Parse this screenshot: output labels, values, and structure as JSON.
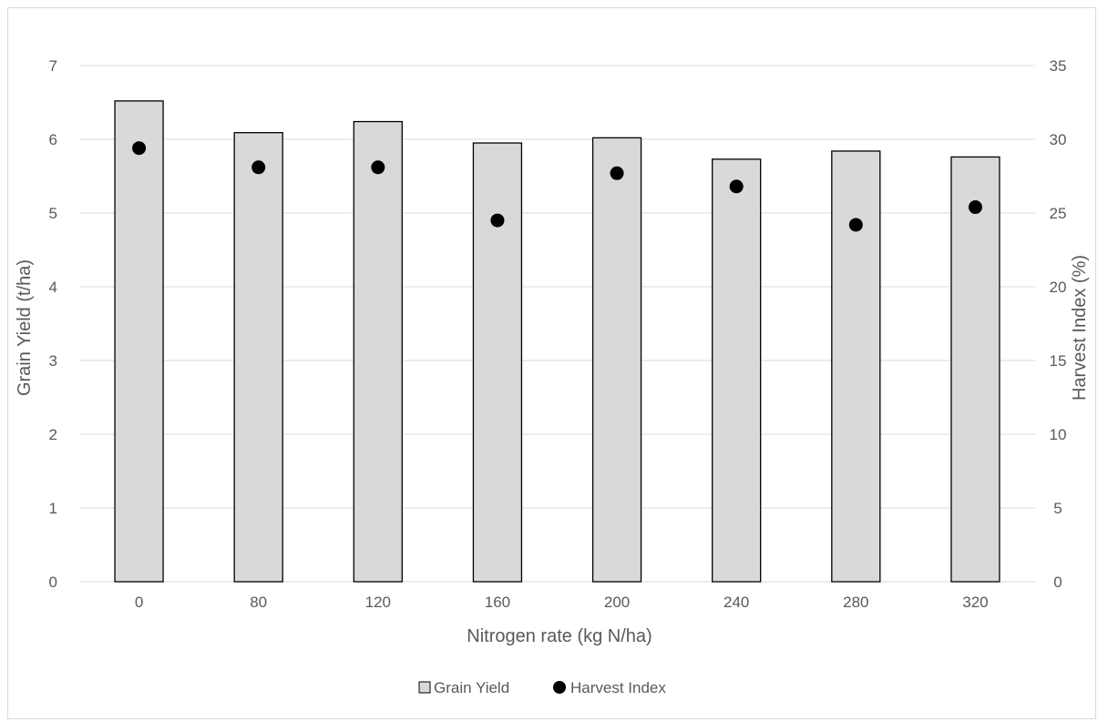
{
  "chart_data": {
    "type": "bar",
    "categories": [
      "0",
      "80",
      "120",
      "160",
      "200",
      "240",
      "280",
      "320"
    ],
    "series": [
      {
        "name": "Grain Yield",
        "kind": "bar",
        "axis": "left",
        "values": [
          6.52,
          6.09,
          6.24,
          5.95,
          6.02,
          5.73,
          5.84,
          5.76
        ],
        "color": "#d9d9d9",
        "edge_color": "#000000"
      },
      {
        "name": "Harvest Index",
        "kind": "scatter",
        "axis": "right",
        "values": [
          29.4,
          28.1,
          28.1,
          24.5,
          27.7,
          26.8,
          24.2,
          25.4
        ],
        "color": "#000000"
      }
    ],
    "title": "",
    "xlabel": "Nitrogen rate (kg N/ha)",
    "ylabel": "Grain Yield (t/ha)",
    "y2label": "Harvest Index (%)",
    "ylim": [
      0,
      7
    ],
    "y2lim": [
      0,
      35
    ],
    "yticks": [
      "0",
      "1",
      "2",
      "3",
      "4",
      "5",
      "6",
      "7"
    ],
    "y2ticks": [
      "0",
      "5",
      "10",
      "15",
      "20",
      "25",
      "30",
      "35"
    ],
    "grid": true,
    "legend_position": "bottom"
  }
}
